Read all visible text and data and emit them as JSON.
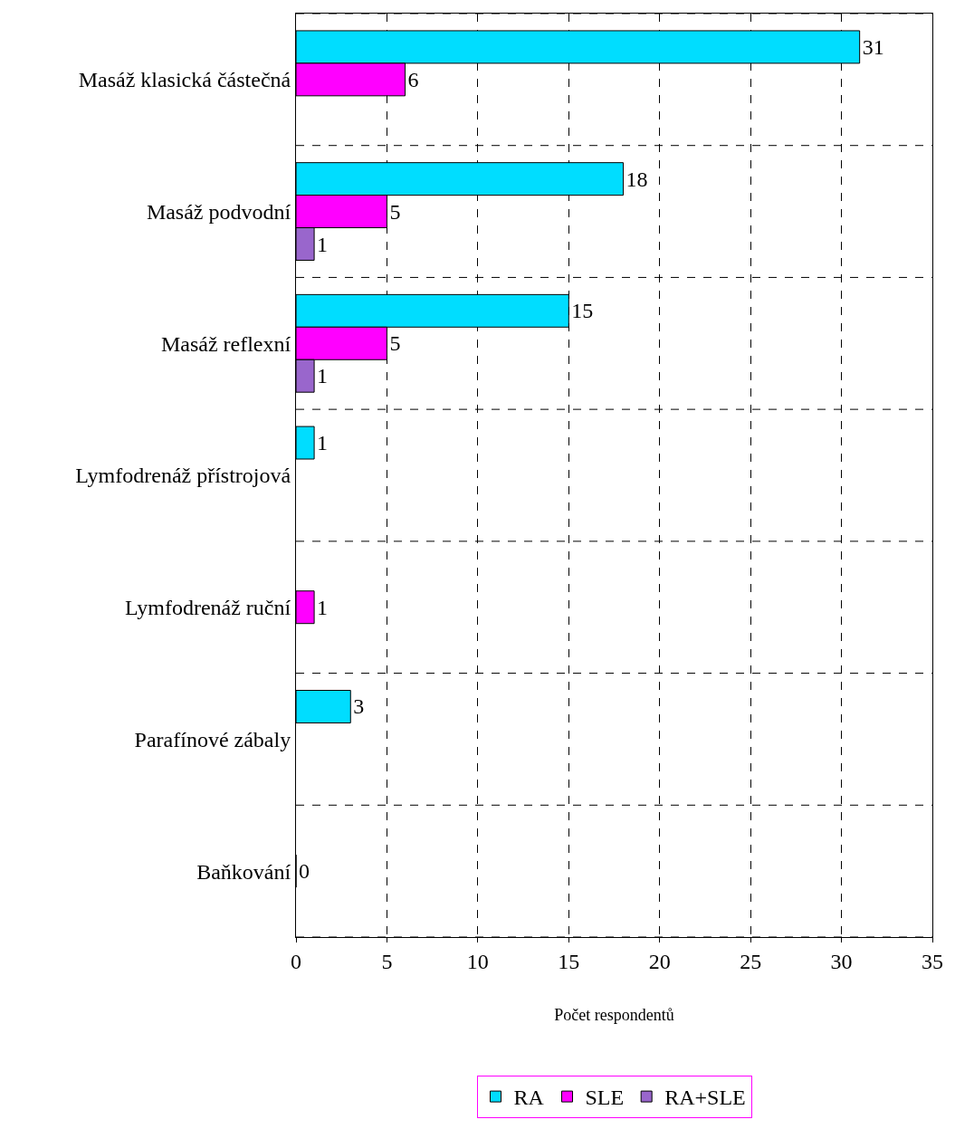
{
  "chart_data": {
    "type": "bar",
    "orientation": "horizontal",
    "xlabel": "Počet respondentů",
    "categories": [
      "Masáž klasická částečná",
      "Masáž podvodní",
      "Masáž reflexní",
      "Lymfodrenáž přístrojová",
      "Lymfodrenáž ruční",
      "Parafínové zábaly",
      "Baňkování"
    ],
    "series": [
      {
        "name": "RA",
        "color": "#00ddff",
        "values": [
          31,
          18,
          15,
          1,
          null,
          3,
          null
        ]
      },
      {
        "name": "SLE",
        "color": "#ff00ff",
        "values": [
          6,
          5,
          5,
          null,
          1,
          null,
          0
        ]
      },
      {
        "name": "RA+SLE",
        "color": "#9966cc",
        "values": [
          null,
          1,
          1,
          null,
          null,
          null,
          null
        ]
      }
    ],
    "xlim": [
      0,
      35
    ],
    "xticks": [
      0,
      5,
      10,
      15,
      20,
      25,
      30,
      35
    ],
    "grid": true,
    "legend": "bottom",
    "data_labels": true
  }
}
